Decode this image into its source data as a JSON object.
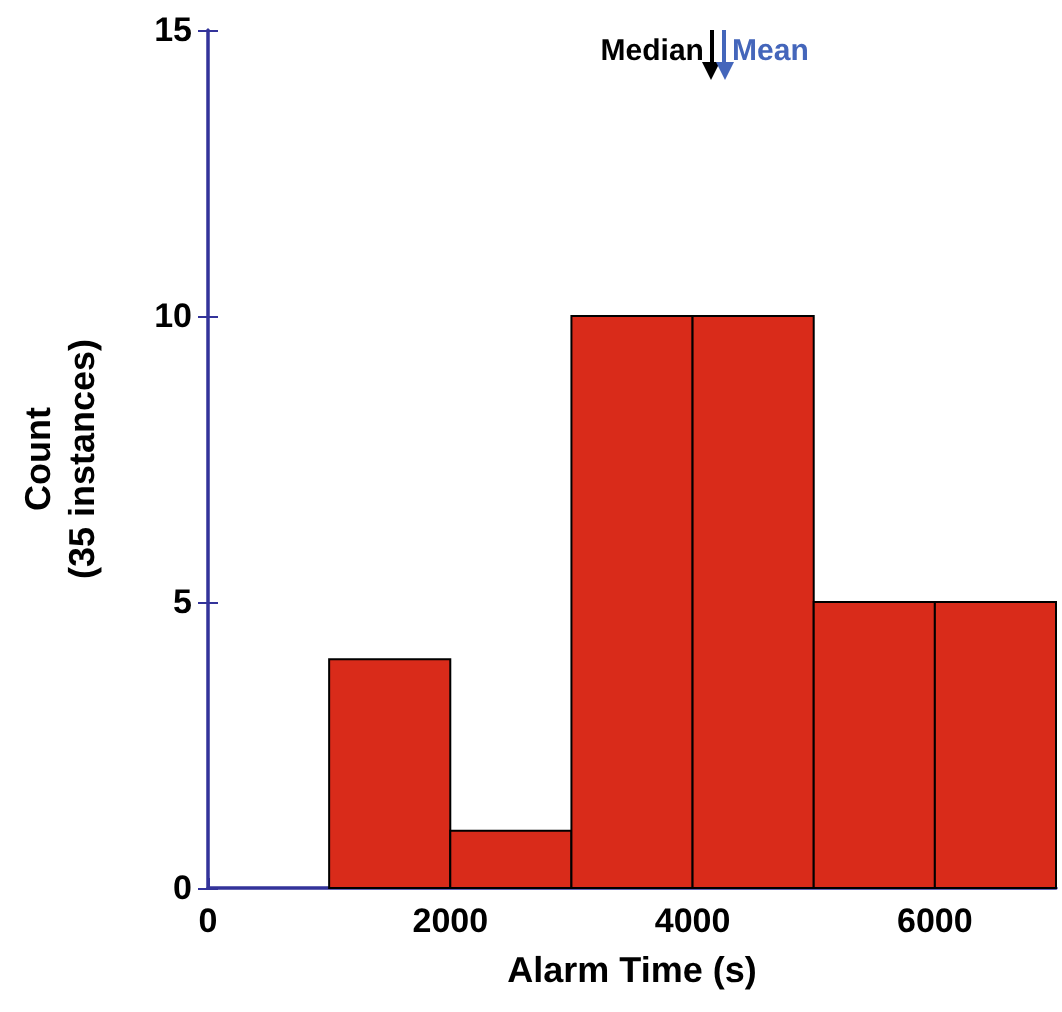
{
  "chart_data": {
    "type": "histogram",
    "xlabel": "Alarm Time (s)",
    "ylabel": "Count\n(35 instances)",
    "bins": [
      1000,
      2000,
      3000,
      4000,
      5000,
      6000,
      7000
    ],
    "values": [
      4,
      1,
      10,
      10,
      5,
      5
    ],
    "color": "#d92b1a",
    "xlim": [
      0,
      7000
    ],
    "xticks": [
      0,
      2000,
      4000,
      6000
    ],
    "ylim": [
      0,
      15
    ],
    "yticks": [
      0,
      5,
      10,
      15
    ],
    "grid": false,
    "ref_lines": [
      {
        "axis": "x",
        "value": 4160,
        "label": "Median",
        "color": "#000000"
      },
      {
        "axis": "x",
        "value": 4260,
        "label": "Mean",
        "color": "#4466bb"
      }
    ]
  }
}
